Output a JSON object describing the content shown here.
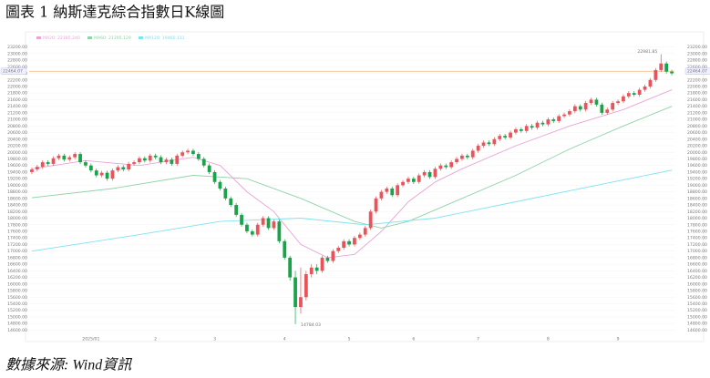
{
  "title": "圖表 1 納斯達克綜合指數日K線圖",
  "source": "數據來源: Wind資訊",
  "chart_data": {
    "type": "candlestick",
    "up_color": "#e8545a",
    "down_color": "#1aa34a",
    "grid": true,
    "ylim": [
      14500,
      23300
    ],
    "yticks": [
      {
        "value": 14600,
        "label": "14600.00"
      },
      {
        "value": 14800,
        "label": "14800.00"
      },
      {
        "value": 15000,
        "label": "15000.00"
      },
      {
        "value": 15200,
        "label": "15200.00"
      },
      {
        "value": 15400,
        "label": "15400.00"
      },
      {
        "value": 15600,
        "label": "15600.00"
      },
      {
        "value": 15800,
        "label": "15800.00"
      },
      {
        "value": 16000,
        "label": "16000.00"
      },
      {
        "value": 16200,
        "label": "16200.00"
      },
      {
        "value": 16400,
        "label": "16400.00"
      },
      {
        "value": 16600,
        "label": "16600.00"
      },
      {
        "value": 16800,
        "label": "16800.00"
      },
      {
        "value": 17000,
        "label": "17000.00"
      },
      {
        "value": 17200,
        "label": "17200.00"
      },
      {
        "value": 17400,
        "label": "17400.00"
      },
      {
        "value": 17600,
        "label": "17600.00"
      },
      {
        "value": 17800,
        "label": "17800.00"
      },
      {
        "value": 18000,
        "label": "18000.00"
      },
      {
        "value": 18200,
        "label": "18200.00"
      },
      {
        "value": 18400,
        "label": "18400.00"
      },
      {
        "value": 18600,
        "label": "18600.00"
      },
      {
        "value": 18800,
        "label": "18800.00"
      },
      {
        "value": 19000,
        "label": "19000.00"
      },
      {
        "value": 19200,
        "label": "19200.00"
      },
      {
        "value": 19400,
        "label": "19400.00"
      },
      {
        "value": 19600,
        "label": "19600.00"
      },
      {
        "value": 19800,
        "label": "19800.00"
      },
      {
        "value": 20000,
        "label": "20000.00"
      },
      {
        "value": 20200,
        "label": "20200.00"
      },
      {
        "value": 20400,
        "label": "20400.00"
      },
      {
        "value": 20600,
        "label": "20600.00"
      },
      {
        "value": 20800,
        "label": "20800.00"
      },
      {
        "value": 21000,
        "label": "21000.00"
      },
      {
        "value": 21200,
        "label": "21200.00"
      },
      {
        "value": 21400,
        "label": "21400.00"
      },
      {
        "value": 21600,
        "label": "21600.00"
      },
      {
        "value": 21800,
        "label": "21800.00"
      },
      {
        "value": 22000,
        "label": "22000.00"
      },
      {
        "value": 22200,
        "label": "22200.00"
      },
      {
        "value": 22400,
        "label": "22400.00"
      },
      {
        "value": 22600,
        "label": "22600.00"
      },
      {
        "value": 22800,
        "label": "22800.00"
      },
      {
        "value": 23000,
        "label": "23000.00"
      },
      {
        "value": 23200,
        "label": "23200.00"
      }
    ],
    "categories": [
      null,
      null,
      null,
      null,
      null,
      null,
      null,
      null,
      null,
      null,
      null,
      "2025/01",
      null,
      null,
      null,
      null,
      null,
      null,
      null,
      null,
      null,
      null,
      null,
      "2",
      null,
      null,
      null,
      null,
      null,
      null,
      null,
      null,
      null,
      null,
      "3",
      null,
      null,
      null,
      null,
      null,
      null,
      null,
      null,
      null,
      null,
      null,
      null,
      "4",
      null,
      null,
      null,
      null,
      null,
      null,
      null,
      null,
      null,
      null,
      null,
      "5",
      null,
      null,
      null,
      null,
      null,
      null,
      null,
      null,
      null,
      null,
      null,
      "6",
      null,
      null,
      null,
      null,
      null,
      null,
      null,
      null,
      null,
      null,
      null,
      "7",
      null,
      null,
      null,
      null,
      null,
      null,
      null,
      null,
      null,
      null,
      null,
      null,
      "8",
      null,
      null,
      null,
      null,
      null,
      null,
      null,
      null,
      null,
      null,
      null,
      null,
      "9",
      null,
      null,
      null,
      null,
      null,
      null,
      null,
      null,
      null,
      null
    ],
    "open": [
      19400,
      19480,
      19560,
      19700,
      19650,
      19820,
      19900,
      19780,
      19850,
      19950,
      19700,
      19600,
      19450,
      19300,
      19380,
      19200,
      19450,
      19550,
      19480,
      19650,
      19700,
      19820,
      19750,
      19900,
      19850,
      19700,
      19780,
      19650,
      19900,
      20000,
      20050,
      19950,
      19800,
      19600,
      19400,
      19100,
      18900,
      18600,
      18400,
      18100,
      17800,
      17600,
      17500,
      17800,
      18000,
      17700,
      17900,
      17300,
      16800,
      16200,
      15300,
      15600,
      16300,
      16500,
      16400,
      16800,
      16700,
      17000,
      17100,
      17300,
      17200,
      17400,
      17500,
      17700,
      18200,
      18600,
      18800,
      18900,
      18700,
      19000,
      19100,
      19200,
      19100,
      19300,
      19400,
      19250,
      19500,
      19600,
      19550,
      19700,
      19800,
      19900,
      19850,
      20050,
      20200,
      20300,
      20250,
      20400,
      20500,
      20450,
      20600,
      20700,
      20650,
      20800,
      20750,
      20900,
      20850,
      21000,
      20950,
      21100,
      21150,
      21250,
      21400,
      21300,
      21500,
      21600,
      21450,
      21200,
      21300,
      21500,
      21550,
      21700,
      21800,
      21750,
      21900,
      22000,
      22200,
      22500,
      22700,
      22450
    ],
    "high": [
      19540,
      19620,
      19760,
      19760,
      19880,
      19960,
      19960,
      19910,
      20010,
      20010,
      19760,
      19660,
      19510,
      19440,
      19440,
      19510,
      19610,
      19610,
      19710,
      19760,
      19880,
      19880,
      19960,
      19960,
      19910,
      19840,
      19840,
      19960,
      20060,
      20110,
      20110,
      20010,
      19860,
      19660,
      19460,
      19160,
      18960,
      18660,
      18460,
      18160,
      17860,
      17660,
      17860,
      18060,
      18060,
      17960,
      17960,
      17360,
      16860,
      16400,
      16500,
      16400,
      16600,
      16600,
      16860,
      16860,
      17060,
      17160,
      17360,
      17360,
      17460,
      17560,
      17760,
      18260,
      18660,
      18860,
      18960,
      18960,
      19060,
      19160,
      19260,
      19260,
      19360,
      19460,
      19460,
      19560,
      19660,
      19660,
      19760,
      19860,
      19960,
      19960,
      20110,
      20260,
      20360,
      20360,
      20460,
      20560,
      20560,
      20660,
      20760,
      20760,
      20860,
      20860,
      20960,
      20960,
      21060,
      21060,
      21160,
      21210,
      21310,
      21460,
      21460,
      21560,
      21660,
      21660,
      21510,
      21360,
      21560,
      21610,
      21760,
      21860,
      21860,
      21960,
      22060,
      22260,
      22560,
      22981.85,
      22760,
      22510
    ],
    "low": [
      19340,
      19420,
      19500,
      19590,
      19590,
      19760,
      19720,
      19720,
      19790,
      19640,
      19540,
      19390,
      19240,
      19240,
      19140,
      19140,
      19390,
      19420,
      19420,
      19590,
      19640,
      19690,
      19690,
      19790,
      19640,
      19640,
      19590,
      19590,
      19840,
      19940,
      19890,
      19740,
      19540,
      19340,
      19040,
      18840,
      18540,
      18340,
      18040,
      17740,
      17540,
      17440,
      17440,
      17740,
      17640,
      17640,
      17240,
      16740,
      16100,
      14784.03,
      15100,
      15500,
      16200,
      16300,
      16340,
      16640,
      16640,
      16940,
      17040,
      17140,
      17140,
      17340,
      17440,
      17640,
      18140,
      18540,
      18740,
      18640,
      18640,
      18940,
      19040,
      19040,
      19040,
      19240,
      19190,
      19190,
      19440,
      19490,
      19490,
      19640,
      19740,
      19790,
      19790,
      19990,
      20140,
      20190,
      20190,
      20340,
      20390,
      20390,
      20540,
      20590,
      20590,
      20690,
      20690,
      20790,
      20790,
      20890,
      20890,
      21040,
      21090,
      21190,
      21240,
      21240,
      21440,
      21390,
      21140,
      21140,
      21240,
      21440,
      21490,
      21640,
      21690,
      21690,
      21840,
      21940,
      22140,
      22440,
      22390,
      22340
    ],
    "close": [
      19480,
      19560,
      19700,
      19650,
      19820,
      19900,
      19780,
      19850,
      19950,
      19700,
      19600,
      19450,
      19300,
      19380,
      19200,
      19450,
      19550,
      19480,
      19650,
      19700,
      19820,
      19750,
      19900,
      19850,
      19700,
      19780,
      19650,
      19900,
      20000,
      20050,
      19950,
      19800,
      19600,
      19400,
      19100,
      18900,
      18600,
      18400,
      18100,
      17800,
      17600,
      17500,
      17800,
      18000,
      17700,
      17900,
      17300,
      16800,
      16200,
      15300,
      15600,
      16300,
      16500,
      16400,
      16800,
      16700,
      17000,
      17100,
      17300,
      17200,
      17400,
      17500,
      17700,
      18200,
      18600,
      18800,
      18900,
      18700,
      19000,
      19100,
      19200,
      19100,
      19300,
      19400,
      19250,
      19500,
      19600,
      19550,
      19700,
      19800,
      19900,
      19850,
      20050,
      20200,
      20300,
      20250,
      20400,
      20500,
      20450,
      20600,
      20700,
      20650,
      20800,
      20750,
      20900,
      20850,
      21000,
      20950,
      21100,
      21150,
      21250,
      21400,
      21300,
      21500,
      21600,
      21450,
      21200,
      21300,
      21500,
      21550,
      21700,
      21800,
      21750,
      21900,
      22000,
      22200,
      22500,
      22700,
      22450,
      22400
    ],
    "last_price": 22464.07,
    "last_price_color": "#f0a35c",
    "lines": [
      {
        "name": "MA20: 22185.240",
        "color": "#e9a3d6",
        "x": [
          0,
          10,
          20,
          30,
          35,
          40,
          45,
          50,
          55,
          60,
          65,
          70,
          75,
          80,
          90,
          100,
          110,
          119
        ],
        "values": [
          19500,
          19750,
          19600,
          19850,
          19600,
          18800,
          18200,
          17200,
          16800,
          16900,
          17600,
          18500,
          19100,
          19500,
          20200,
          20800,
          21300,
          21900
        ]
      },
      {
        "name": "MA60: 21395.129",
        "color": "#8fd3a8",
        "x": [
          0,
          15,
          30,
          40,
          50,
          60,
          65,
          70,
          80,
          90,
          100,
          110,
          119
        ],
        "values": [
          18620,
          18900,
          19300,
          19200,
          18600,
          17900,
          17700,
          17900,
          18600,
          19300,
          20100,
          20800,
          21400
        ]
      },
      {
        "name": "MA120: 19460.111",
        "color": "#7fe3ef",
        "x": [
          0,
          20,
          35,
          50,
          62,
          75,
          90,
          105,
          119
        ],
        "values": [
          17000,
          17500,
          17900,
          18000,
          17800,
          18000,
          18500,
          19000,
          19460
        ]
      }
    ]
  }
}
